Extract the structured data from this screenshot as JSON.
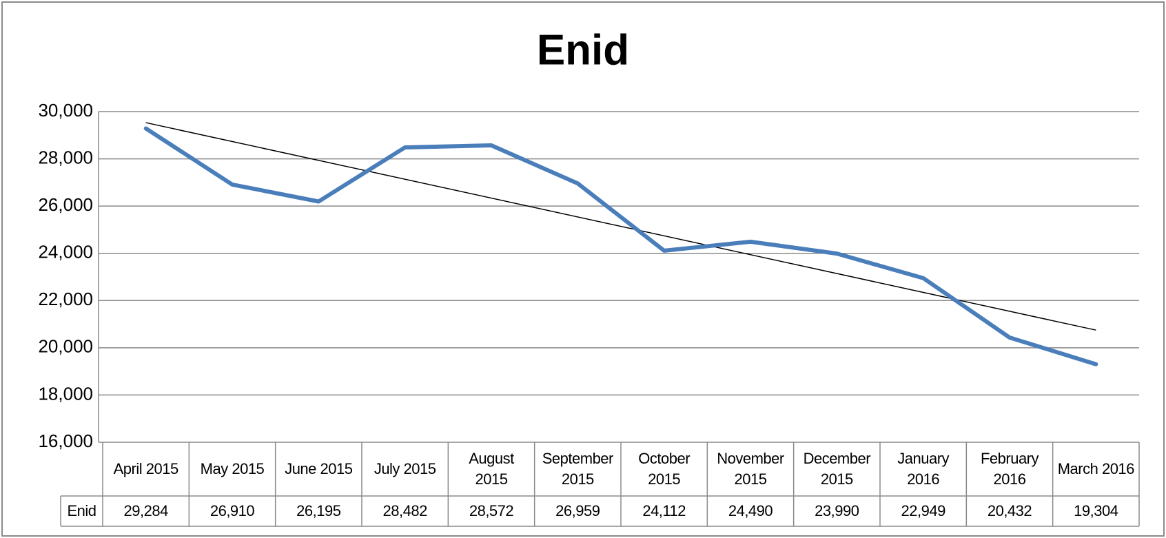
{
  "chart_data": {
    "type": "line",
    "title": "Enid",
    "categories": [
      "April 2015",
      "May 2015",
      "June 2015",
      "July 2015",
      "August 2015",
      "September 2015",
      "October 2015",
      "November 2015",
      "December 2015",
      "January 2016",
      "February 2016",
      "March 2016"
    ],
    "series": [
      {
        "name": "Enid",
        "color": "#4a7ebb",
        "values": [
          29284,
          26910,
          26195,
          28482,
          28572,
          26959,
          24112,
          24490,
          23990,
          22949,
          20432,
          19304
        ],
        "value_labels": [
          "29,284",
          "26,910",
          "26,195",
          "28,482",
          "28,572",
          "26,959",
          "24,112",
          "24,490",
          "23,990",
          "22,949",
          "20,432",
          "19,304"
        ]
      }
    ],
    "ylim": [
      16000,
      30000
    ],
    "yticks": [
      {
        "value": 16000,
        "label": "16,000"
      },
      {
        "value": 18000,
        "label": "18,000"
      },
      {
        "value": 20000,
        "label": "20,000"
      },
      {
        "value": 22000,
        "label": "22,000"
      },
      {
        "value": 24000,
        "label": "24,000"
      },
      {
        "value": 26000,
        "label": "26,000"
      },
      {
        "value": 28000,
        "label": "28,000"
      },
      {
        "value": 30000,
        "label": "30,000"
      }
    ],
    "grid": true,
    "trendline": "linear",
    "data_table": true
  }
}
